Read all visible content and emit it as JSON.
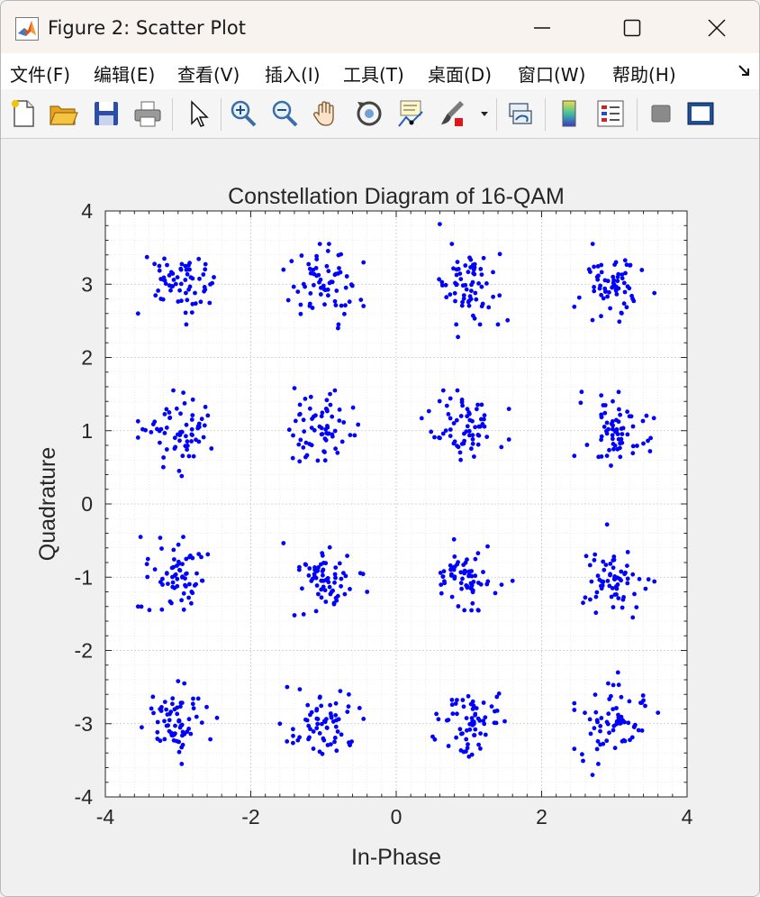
{
  "window": {
    "title": "Figure 2: Scatter Plot"
  },
  "menu": {
    "items": [
      "文件(F)",
      "编辑(E)",
      "查看(V)",
      "插入(I)",
      "工具(T)",
      "桌面(D)",
      "窗口(W)",
      "帮助(H)"
    ]
  },
  "toolbar": {
    "icons": [
      "new-figure-icon",
      "open-file-icon",
      "save-icon",
      "print-icon",
      "pointer-icon",
      "zoom-in-icon",
      "zoom-out-icon",
      "pan-hand-icon",
      "rotate-3d-icon",
      "data-cursor-icon",
      "brush-icon",
      "link-plot-icon",
      "colorbar-icon",
      "legend-icon",
      "hide-plot-tools-icon",
      "show-plot-tools-icon"
    ]
  },
  "chart_data": {
    "type": "scatter",
    "title": "Constellation Diagram of 16-QAM",
    "xlabel": "In-Phase",
    "ylabel": "Quadrature",
    "xlim": [
      -4,
      4
    ],
    "ylim": [
      -4,
      4
    ],
    "xticks": [
      "-4",
      "-2",
      "0",
      "2",
      "4"
    ],
    "yticks": [
      "4",
      "3",
      "2",
      "1",
      "0",
      "-1",
      "-2",
      "-3",
      "-4"
    ],
    "grid": true,
    "minor_grid": true,
    "marker_color": "#0000ff",
    "constellation_points": [
      [
        -3,
        3
      ],
      [
        -1,
        3
      ],
      [
        1,
        3
      ],
      [
        3,
        3
      ],
      [
        -3,
        1
      ],
      [
        -1,
        1
      ],
      [
        1,
        1
      ],
      [
        3,
        1
      ],
      [
        -3,
        -1
      ],
      [
        -1,
        -1
      ],
      [
        1,
        -1
      ],
      [
        3,
        -1
      ],
      [
        -3,
        -3
      ],
      [
        -1,
        -3
      ],
      [
        1,
        -3
      ],
      [
        3,
        -3
      ]
    ],
    "points_per_symbol": 65,
    "noise_spread": 0.22,
    "outliers": [
      [
        0.6,
        3.82
      ],
      [
        0.85,
        2.28
      ],
      [
        1.4,
        2.45
      ],
      [
        -0.8,
        2.4
      ],
      [
        -3.55,
        2.6
      ],
      [
        -1.4,
        1.58
      ],
      [
        -2.95,
        0.38
      ],
      [
        0.35,
        1.17
      ],
      [
        2.55,
        1.53
      ],
      [
        3.5,
        0.9
      ],
      [
        -3.55,
        -1.4
      ],
      [
        -0.4,
        -1.2
      ],
      [
        -1.4,
        -1.52
      ],
      [
        2.9,
        -0.28
      ],
      [
        1.6,
        -1.05
      ],
      [
        -3.0,
        -2.42
      ],
      [
        -1.5,
        -2.5
      ],
      [
        3.05,
        -2.3
      ],
      [
        3.6,
        -2.85
      ],
      [
        2.7,
        -3.7
      ],
      [
        -3.5,
        -3.05
      ],
      [
        -1.6,
        -3.0
      ],
      [
        1.0,
        -3.45
      ],
      [
        -2.95,
        -3.55
      ]
    ]
  }
}
